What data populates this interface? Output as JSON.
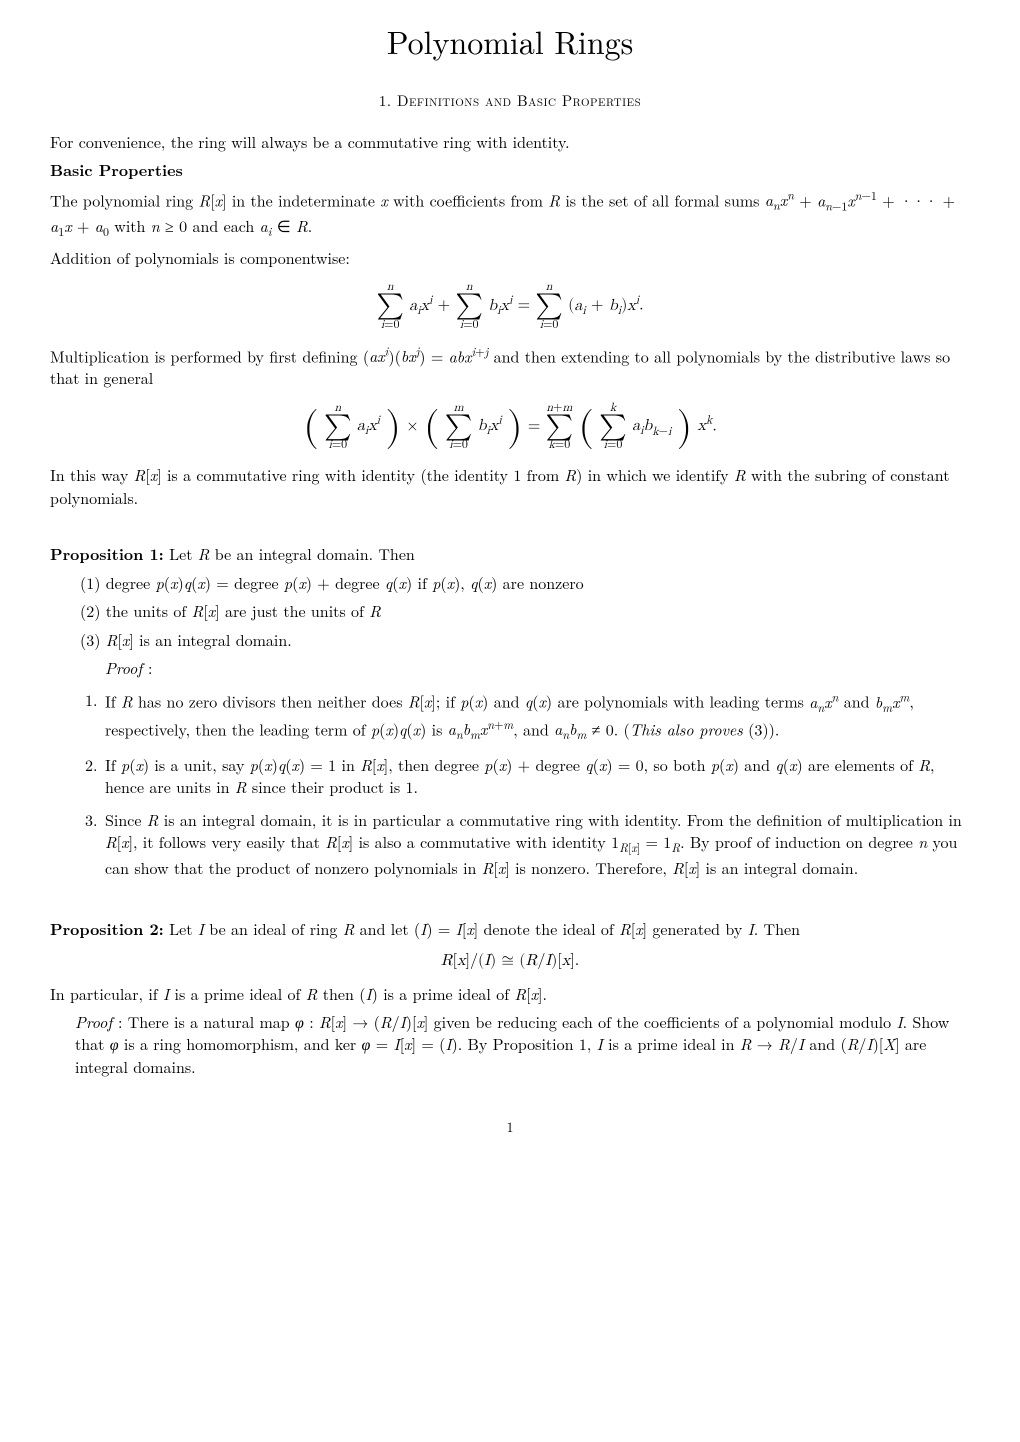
{
  "title": "Polynomial Rings",
  "section": {
    "number": "1.",
    "title": "Definitions and Basic Properties"
  },
  "intro": "For convenience, the ring will always be a commutative ring with identity.",
  "basic": {
    "heading": "Basic Properties",
    "p1a": "The polynomial ring ",
    "p1b": " in the indeterminate ",
    "p1c": " with coefficients from ",
    "p1d": " is the set of all formal sums ",
    "p1e": " with ",
    "p1f": " and each ",
    "p2": "Addition of polynomials is componentwise:",
    "p3a": "Multiplication is performed by first defining ",
    "p3b": " and then extending to all polynomials by the distributive laws so that in general",
    "p4a": "In this way ",
    "p4b": " is a commutative ring with identity (the identity 1 from ",
    "p4c": ") in which we identify ",
    "p4d": " with the subring of constant polynomials."
  },
  "prop1": {
    "label": "Proposition 1:",
    "stmt_a": " Let ",
    "stmt_b": " be an integral domain. Then",
    "items": {
      "i1a": "(1) degree ",
      "i1b": " degree ",
      "i1c": " degree ",
      "i1d": " if ",
      "i1e": " are nonzero",
      "i2a": "(2) the units of ",
      "i2b": " are just the units of ",
      "i3a": "(3) ",
      "i3b": " is an integral domain."
    },
    "proof_label": "Proof",
    "proofs": {
      "n1": "1.",
      "p1a": "If ",
      "p1b": " has no zero divisors then neither does ",
      "p1c": "; if ",
      "p1d": " and ",
      "p1e": " are polynomials with leading terms ",
      "p1f": " and ",
      "p1g": ", respectively, then the leading term of ",
      "p1h": " is ",
      "p1i": ", and ",
      "p1j": ". (",
      "p1k": "This also proves",
      "p1l": " (3)).",
      "n2": "2.",
      "p2a": "If ",
      "p2b": " is a unit, say ",
      "p2c": " in ",
      "p2d": ", then degree ",
      "p2e": " degree ",
      "p2f": ", so both ",
      "p2g": " and ",
      "p2h": " are elements of ",
      "p2i": ", hence are units in ",
      "p2j": " since their product is 1.",
      "n3": "3.",
      "p3a": "Since ",
      "p3b": " is an integral domain, it is in particular a commutative ring with identity. From the definition of multiplication in ",
      "p3c": ", it follows very easily that ",
      "p3d": " is also a commutative with identity ",
      "p3e": ". By proof of induction on degree ",
      "p3f": " you can show that the product of nonzero polynomials in ",
      "p3g": " is nonzero. Therefore, ",
      "p3h": " is an integral domain."
    }
  },
  "prop2": {
    "label": "Proposition 2:",
    "stmt_a": " Let ",
    "stmt_b": " be an ideal of ring ",
    "stmt_c": " and let ",
    "stmt_d": " denote the ideal of ",
    "stmt_e": " generated by ",
    "stmt_f": ". Then",
    "corol_a": "In particular, if ",
    "corol_b": " is a prime ideal of ",
    "corol_c": " then ",
    "corol_d": " is a prime ideal of ",
    "proof_label": "Proof",
    "proof_a": ": There is a natural map ",
    "proof_b": " given be reducing each of the coefficients of a polynomial modulo ",
    "proof_c": ". Show that ",
    "proof_d": " is a ring homomorphism, and ker ",
    "proof_e": ". By Proposition 1, ",
    "proof_f": " is a prime ideal in ",
    "proof_g": " and ",
    "proof_h": " are integral domains."
  },
  "page": "1",
  "style": {
    "body_font": "Latin Modern Roman",
    "title_fontsize": 32,
    "body_fontsize": 16,
    "text_color": "#000000",
    "bg_color": "#ffffff"
  }
}
